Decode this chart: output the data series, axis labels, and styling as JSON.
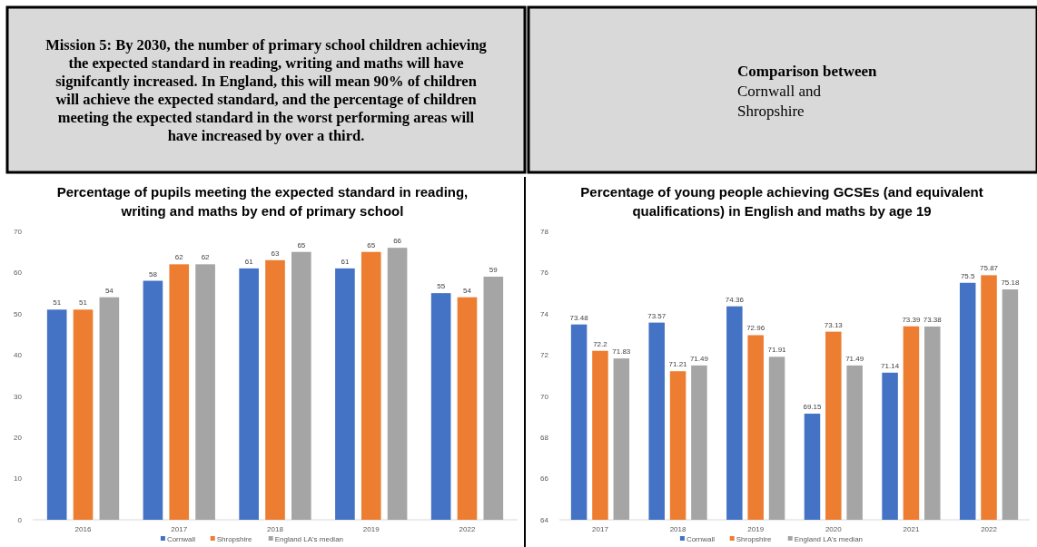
{
  "chart_data": [
    {
      "type": "other",
      "title": "Mission 5: By 2030, the number of primary school children achieving the expected standard in reading, writing and maths will have signifcantly increased. In England, this will mean 90% of children will achieve the expected standard, and the percentage of children meeting the expected standard in the worst performing areas will have increased by over a third."
    },
    {
      "type": "other",
      "title": "Comparison between",
      "subtitle": "Cornwall and Shropshire"
    },
    {
      "type": "bar",
      "title": "Percentage of pupils meeting the expected standard in reading, writing and maths by end of primary school",
      "categories": [
        "2016",
        "2017",
        "2018",
        "2019",
        "2022"
      ],
      "series": [
        {
          "name": "Cornwall",
          "color": "#4472c4",
          "values": [
            51,
            58,
            61,
            61,
            55
          ]
        },
        {
          "name": "Shropshire",
          "color": "#ed7d31",
          "values": [
            51,
            62,
            63,
            65,
            54
          ]
        },
        {
          "name": "England LA's median",
          "color": "#a5a5a5",
          "values": [
            54,
            62,
            65,
            66,
            59
          ]
        }
      ],
      "ylim": [
        0,
        70
      ],
      "yticks": [
        0,
        10,
        20,
        30,
        40,
        50,
        60,
        70
      ],
      "data_labels": true,
      "legend": "bottom"
    },
    {
      "type": "bar",
      "title": "Percentage of young people achieving GCSEs (and equivalent qualifications) in English and maths by age 19",
      "categories": [
        "2017",
        "2018",
        "2019",
        "2020",
        "2021",
        "2022"
      ],
      "series": [
        {
          "name": "Cornwall",
          "color": "#4472c4",
          "values": [
            73.48,
            73.57,
            74.36,
            69.15,
            71.14,
            75.5
          ]
        },
        {
          "name": "Shropshire",
          "color": "#ed7d31",
          "values": [
            72.2,
            71.21,
            72.96,
            73.13,
            73.39,
            75.87
          ]
        },
        {
          "name": "England LA's median",
          "color": "#a5a5a5",
          "values": [
            71.83,
            71.49,
            71.91,
            71.49,
            73.38,
            75.18
          ]
        }
      ],
      "ylim": [
        64,
        78
      ],
      "yticks": [
        64,
        66,
        68,
        70,
        72,
        74,
        76,
        78
      ],
      "data_labels": true,
      "legend": "bottom"
    }
  ]
}
